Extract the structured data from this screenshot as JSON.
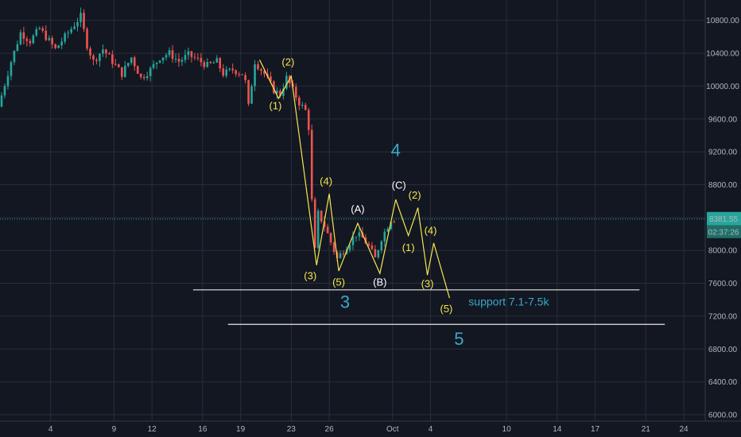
{
  "chart_data": {
    "type": "candlestick",
    "ylim": [
      6000,
      11000
    ],
    "xlim_days": [
      "Aug 31",
      "Oct 25"
    ],
    "y_ticks": [
      6000,
      6400,
      6800,
      7200,
      7600,
      8000,
      8400,
      8800,
      9200,
      9600,
      10000,
      10400,
      10800
    ],
    "y_tick_labels": [
      "6000.00",
      "6400.00",
      "6800.00",
      "7200.00",
      "7600.00",
      "8000.00",
      "8400.00",
      "8800.00",
      "9200.00",
      "9600.00",
      "10000.00",
      "10400.00",
      "10800.00"
    ],
    "x_ticks": [
      {
        "label": "4",
        "x": "Sep 4"
      },
      {
        "label": "9",
        "x": "Sep 9"
      },
      {
        "label": "12",
        "x": "Sep 12"
      },
      {
        "label": "16",
        "x": "Sep 16"
      },
      {
        "label": "19",
        "x": "Sep 19"
      },
      {
        "label": "23",
        "x": "Sep 23"
      },
      {
        "label": "26",
        "x": "Sep 26"
      },
      {
        "label": "Oct",
        "x": "Oct 1"
      },
      {
        "label": "4",
        "x": "Oct 4"
      },
      {
        "label": "10",
        "x": "Oct 10"
      },
      {
        "label": "14",
        "x": "Oct 14"
      },
      {
        "label": "17",
        "x": "Oct 17"
      },
      {
        "label": "21",
        "x": "Oct 21"
      },
      {
        "label": "24",
        "x": "Oct 24"
      }
    ],
    "last_price": {
      "value": 8381.55,
      "label": "8381.55",
      "countdown": "02:37:26"
    },
    "price_path": [
      {
        "x": "Aug 31 00:00",
        "y": 9750
      },
      {
        "x": "Sep 1 00:00",
        "y": 10300
      },
      {
        "x": "Sep 1 18:00",
        "y": 10650
      },
      {
        "x": "Sep 2 12:00",
        "y": 10550
      },
      {
        "x": "Sep 3 06:00",
        "y": 10700
      },
      {
        "x": "Sep 3 18:00",
        "y": 10600
      },
      {
        "x": "Sep 4 12:00",
        "y": 10450
      },
      {
        "x": "Sep 5 06:00",
        "y": 10600
      },
      {
        "x": "Sep 6 00:00",
        "y": 10750
      },
      {
        "x": "Sep 6 12:00",
        "y": 10850
      },
      {
        "x": "Sep 7 00:00",
        "y": 10500
      },
      {
        "x": "Sep 7 12:00",
        "y": 10300
      },
      {
        "x": "Sep 8 06:00",
        "y": 10450
      },
      {
        "x": "Sep 9 00:00",
        "y": 10300
      },
      {
        "x": "Sep 9 18:00",
        "y": 10150
      },
      {
        "x": "Sep 10 12:00",
        "y": 10350
      },
      {
        "x": "Sep 11 06:00",
        "y": 10100
      },
      {
        "x": "Sep 12 00:00",
        "y": 10200
      },
      {
        "x": "Sep 12 18:00",
        "y": 10350
      },
      {
        "x": "Sep 13 12:00",
        "y": 10400
      },
      {
        "x": "Sep 14 06:00",
        "y": 10300
      },
      {
        "x": "Sep 15 00:00",
        "y": 10380
      },
      {
        "x": "Sep 15 18:00",
        "y": 10320
      },
      {
        "x": "Sep 16 12:00",
        "y": 10250
      },
      {
        "x": "Sep 17 06:00",
        "y": 10300
      },
      {
        "x": "Sep 17 18:00",
        "y": 10150
      },
      {
        "x": "Sep 18 12:00",
        "y": 10200
      },
      {
        "x": "Sep 19 06:00",
        "y": 10150
      },
      {
        "x": "Sep 19 12:00",
        "y": 10050
      },
      {
        "x": "Sep 19 18:00",
        "y": 9750
      },
      {
        "x": "Sep 20 06:00",
        "y": 10300
      },
      {
        "x": "Sep 21 00:00",
        "y": 10150
      },
      {
        "x": "Sep 21 18:00",
        "y": 9950
      },
      {
        "x": "Sep 22 06:00",
        "y": 9900
      },
      {
        "x": "Sep 22 18:00",
        "y": 10100
      },
      {
        "x": "Sep 23 06:00",
        "y": 9950
      },
      {
        "x": "Sep 23 18:00",
        "y": 9800
      },
      {
        "x": "Sep 24 06:00",
        "y": 9700
      },
      {
        "x": "Sep 24 12:00",
        "y": 9500
      },
      {
        "x": "Sep 24 18:00",
        "y": 8600
      },
      {
        "x": "Sep 25 00:00",
        "y": 8000
      },
      {
        "x": "Sep 25 06:00",
        "y": 8450
      },
      {
        "x": "Sep 25 18:00",
        "y": 8300
      },
      {
        "x": "Sep 26 06:00",
        "y": 8100
      },
      {
        "x": "Sep 26 18:00",
        "y": 7900
      },
      {
        "x": "Sep 27 06:00",
        "y": 8000
      },
      {
        "x": "Sep 27 18:00",
        "y": 8100
      },
      {
        "x": "Sep 28 06:00",
        "y": 8200
      },
      {
        "x": "Sep 28 18:00",
        "y": 8150
      },
      {
        "x": "Sep 29 06:00",
        "y": 8050
      },
      {
        "x": "Sep 29 18:00",
        "y": 7900
      },
      {
        "x": "Sep 30 06:00",
        "y": 8150
      },
      {
        "x": "Sep 30 18:00",
        "y": 8300
      },
      {
        "x": "Oct 1 00:00",
        "y": 8380
      }
    ],
    "wave_count": [
      {
        "x": "Sep 20 12:00",
        "y": 10320
      },
      {
        "x": "Sep 22 00:00",
        "y": 9850
      },
      {
        "x": "Sep 23 00:00",
        "y": 10120
      },
      {
        "x": "Sep 25 00:00",
        "y": 7820
      },
      {
        "x": "Sep 26 00:00",
        "y": 8690
      },
      {
        "x": "Sep 26 18:00",
        "y": 7750
      },
      {
        "x": "Sep 28 06:00",
        "y": 8330
      },
      {
        "x": "Sep 30 00:00",
        "y": 7720
      },
      {
        "x": "Oct 1 06:00",
        "y": 8620
      }
    ],
    "projection": [
      {
        "x": "Oct 1 06:00",
        "y": 8620
      },
      {
        "x": "Oct 2 06:00",
        "y": 8180
      },
      {
        "x": "Oct 3 00:00",
        "y": 8520
      },
      {
        "x": "Oct 3 18:00",
        "y": 7700
      },
      {
        "x": "Oct 4 06:00",
        "y": 8090
      },
      {
        "x": "Oct 5 12:00",
        "y": 7420
      }
    ],
    "support_lines": [
      {
        "y": 7520,
        "from": "Sep 15 06:00",
        "to": "Oct 20 12:00"
      },
      {
        "y": 7100,
        "from": "Sep 18 00:00",
        "to": "Oct 22 12:00"
      }
    ],
    "labels": [
      {
        "text": "(1)",
        "x": "Sep 21 18:00",
        "y": 9720,
        "color": "#f5e74d"
      },
      {
        "text": "(2)",
        "x": "Sep 22 18:00",
        "y": 10250,
        "color": "#f5e74d"
      },
      {
        "text": "(3)",
        "x": "Sep 24 12:00",
        "y": 7650,
        "color": "#f5e74d"
      },
      {
        "text": "(4)",
        "x": "Sep 25 18:00",
        "y": 8800,
        "color": "#f5e74d"
      },
      {
        "text": "(5)",
        "x": "Sep 26 18:00",
        "y": 7570,
        "color": "#f5e74d"
      },
      {
        "text": "(A)",
        "x": "Sep 28 06:00",
        "y": 8460,
        "color": "#ffffff"
      },
      {
        "text": "(B)",
        "x": "Sep 30 00:00",
        "y": 7570,
        "color": "#ffffff"
      },
      {
        "text": "(C)",
        "x": "Oct 1 12:00",
        "y": 8750,
        "color": "#ffffff"
      },
      {
        "text": "(2)",
        "x": "Oct 2 18:00",
        "y": 8630,
        "color": "#f5e74d"
      },
      {
        "text": "(1)",
        "x": "Oct 2 06:00",
        "y": 7990,
        "color": "#f5e74d"
      },
      {
        "text": "(4)",
        "x": "Oct 4 00:00",
        "y": 8200,
        "color": "#f5e74d"
      },
      {
        "text": "(3)",
        "x": "Oct 3 18:00",
        "y": 7550,
        "color": "#f5e74d"
      },
      {
        "text": "(5)",
        "x": "Oct 5 06:00",
        "y": 7250,
        "color": "#f5e74d"
      }
    ],
    "big_labels": [
      {
        "text": "4",
        "x": "Oct 1 06:00",
        "y": 9150
      },
      {
        "text": "3",
        "x": "Sep 27 06:00",
        "y": 7300
      },
      {
        "text": "5",
        "x": "Oct 6 06:00",
        "y": 6850
      }
    ],
    "annotation": {
      "text": "support 7.1-7.5k",
      "x": "Oct 7 00:00",
      "y": 7330,
      "color": "#3ba8c8"
    },
    "colors": {
      "up": "#26a69a",
      "down": "#ef5350",
      "wave": "#f5e74d",
      "abc": "#c8c8c8",
      "big": "#3ba8c8",
      "grid": "#2a2e39",
      "price_line": "#26a69a"
    }
  }
}
